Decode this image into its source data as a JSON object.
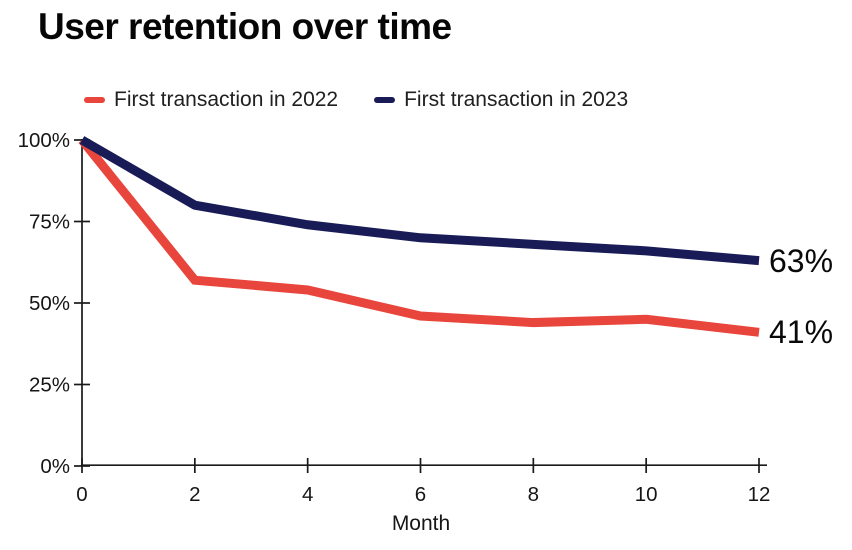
{
  "title": "User retention over time",
  "colors": {
    "red": "#e8463c",
    "navy": "#191b57",
    "axis": "#1a1a1a",
    "text": "#161616"
  },
  "chart_data": {
    "type": "line",
    "title": "User retention over time",
    "xlabel": "Month",
    "ylabel": "",
    "x": [
      0,
      2,
      4,
      6,
      8,
      10,
      12
    ],
    "xlim": [
      0,
      12
    ],
    "ylim": [
      0,
      100
    ],
    "grid": false,
    "legend_position": "top-left",
    "series": [
      {
        "name": "First transaction in 2022",
        "color": "#e8463c",
        "values": [
          100,
          57,
          54,
          46,
          44,
          45,
          41
        ],
        "end_label": "41%"
      },
      {
        "name": "First transaction in 2023",
        "color": "#191b57",
        "values": [
          100,
          80,
          74,
          70,
          68,
          66,
          63
        ],
        "end_label": "63%"
      }
    ],
    "x_ticks": [
      {
        "value": 0,
        "label": "0"
      },
      {
        "value": 2,
        "label": "2"
      },
      {
        "value": 4,
        "label": "4"
      },
      {
        "value": 6,
        "label": "6"
      },
      {
        "value": 8,
        "label": "8"
      },
      {
        "value": 10,
        "label": "10"
      },
      {
        "value": 12,
        "label": "12"
      }
    ],
    "y_ticks": [
      {
        "value": 0,
        "label": "0%"
      },
      {
        "value": 25,
        "label": "25%"
      },
      {
        "value": 50,
        "label": "50%"
      },
      {
        "value": 75,
        "label": "75%"
      },
      {
        "value": 100,
        "label": "100%"
      }
    ]
  }
}
